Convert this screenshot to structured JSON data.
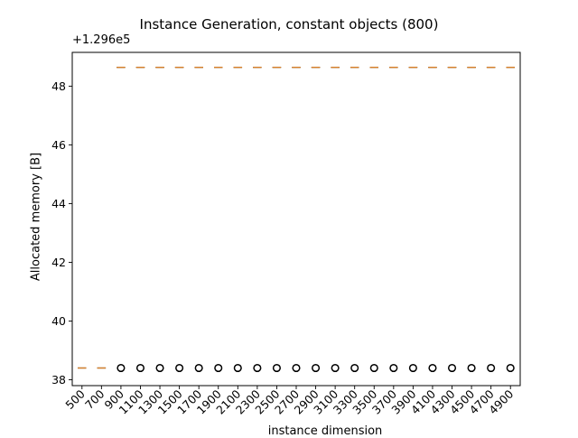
{
  "chart_data": {
    "type": "box",
    "title": "Instance Generation, constant objects (800)",
    "offset_label": "+1.296e5",
    "ylabel": "Allocated memory [B]",
    "xlabel": "instance dimension",
    "categories": [
      "500",
      "700",
      "900",
      "1100",
      "1300",
      "1500",
      "1700",
      "1900",
      "2100",
      "2300",
      "2500",
      "2700",
      "2900",
      "3100",
      "3300",
      "3500",
      "3700",
      "3900",
      "4100",
      "4300",
      "4500",
      "4700",
      "4900"
    ],
    "medians": [
      38.4,
      38.4,
      48.64,
      48.64,
      48.64,
      48.64,
      48.64,
      48.64,
      48.64,
      48.64,
      48.64,
      48.64,
      48.64,
      48.64,
      48.64,
      48.64,
      48.64,
      48.64,
      48.64,
      48.64,
      48.64,
      48.64,
      48.64
    ],
    "outliers": [
      null,
      null,
      38.4,
      38.4,
      38.4,
      38.4,
      38.4,
      38.4,
      38.4,
      38.4,
      38.4,
      38.4,
      38.4,
      38.4,
      38.4,
      38.4,
      38.4,
      38.4,
      38.4,
      38.4,
      38.4,
      38.4,
      38.4
    ],
    "ylim": [
      37.8,
      49.15
    ],
    "yticks": [
      38,
      40,
      42,
      44,
      46,
      48
    ],
    "grid": false,
    "colors": {
      "median": "#d9822b",
      "box": "#000000",
      "outlier": "#000000"
    }
  }
}
